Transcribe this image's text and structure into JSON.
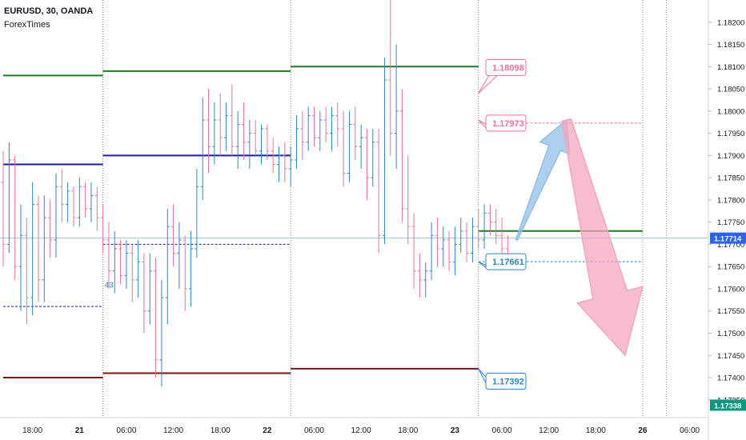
{
  "header": {
    "symbol": "EURUSD, 30, OANDA",
    "publisher": "ForexTimes"
  },
  "colors": {
    "bull": "#2e86c1",
    "bear": "#ef6f9a",
    "resistance": "#1b7a1b",
    "pivot": "#1a1aa6",
    "support": "#7a1515",
    "arrow_up": "#8fbfe6",
    "arrow_down": "#f4a6bd"
  },
  "chart_data": {
    "type": "candlestick",
    "title": "",
    "y_axis_side": "right",
    "ylim": [
      1.1731,
      1.1825
    ],
    "y_ticks": [
      "1.18200",
      "1.18150",
      "1.18100",
      "1.18050",
      "1.18000",
      "1.17950",
      "1.17900",
      "1.17850",
      "1.17800",
      "1.17750",
      "1.17700",
      "1.17650",
      "1.17600",
      "1.17550",
      "1.17500",
      "1.17450",
      "1.17400",
      "1.17350"
    ],
    "x_ticks": [
      {
        "label": "18:00",
        "bar": 5
      },
      {
        "label": "21",
        "bar": 13
      },
      {
        "label": "06:00",
        "bar": 21
      },
      {
        "label": "12:00",
        "bar": 29
      },
      {
        "label": "18:00",
        "bar": 37
      },
      {
        "label": "22",
        "bar": 45
      },
      {
        "label": "06:00",
        "bar": 53
      },
      {
        "label": "12:00",
        "bar": 61
      },
      {
        "label": "18:00",
        "bar": 69
      },
      {
        "label": "23",
        "bar": 77
      },
      {
        "label": "06:00",
        "bar": 85
      },
      {
        "label": "12:00",
        "bar": 93
      },
      {
        "label": "18:00",
        "bar": 101
      },
      {
        "label": "26",
        "bar": 109
      },
      {
        "label": "06:00",
        "bar": 117
      }
    ],
    "session_separators": [
      17,
      49,
      81,
      109,
      113
    ],
    "current_price": {
      "label": "1.17714",
      "value": 1.17714
    },
    "secondary_price": {
      "label": "1.17338",
      "value": 1.17338
    },
    "ohlc": [
      [
        1.1784,
        1.1791,
        1.1765,
        1.177
      ],
      [
        1.177,
        1.1793,
        1.1768,
        1.1789
      ],
      [
        1.1789,
        1.179,
        1.1762,
        1.1765
      ],
      [
        1.1765,
        1.1779,
        1.1755,
        1.1772
      ],
      [
        1.1772,
        1.1776,
        1.1752,
        1.1758
      ],
      [
        1.1758,
        1.1784,
        1.1754,
        1.1779
      ],
      [
        1.1779,
        1.1781,
        1.1757,
        1.1762
      ],
      [
        1.1762,
        1.1781,
        1.1757,
        1.1776
      ],
      [
        1.1776,
        1.178,
        1.1767,
        1.1771
      ],
      [
        1.1771,
        1.1786,
        1.1767,
        1.1783
      ],
      [
        1.1783,
        1.1787,
        1.1775,
        1.1779
      ],
      [
        1.1779,
        1.1784,
        1.1775,
        1.1782
      ],
      [
        1.1782,
        1.1783,
        1.1774,
        1.1776
      ],
      [
        1.1776,
        1.1785,
        1.1774,
        1.1783
      ],
      [
        1.1783,
        1.1784,
        1.1776,
        1.1778
      ],
      [
        1.1778,
        1.1784,
        1.1775,
        1.1781
      ],
      [
        1.1781,
        1.1783,
        1.1773,
        1.1776
      ],
      [
        1.1776,
        1.1779,
        1.1768,
        1.1771
      ],
      [
        1.1771,
        1.1775,
        1.176,
        1.1764
      ],
      [
        1.1764,
        1.1773,
        1.1759,
        1.1769
      ],
      [
        1.1769,
        1.1771,
        1.1761,
        1.1763
      ],
      [
        1.1763,
        1.1771,
        1.176,
        1.1768
      ],
      [
        1.1768,
        1.177,
        1.1757,
        1.1762
      ],
      [
        1.1762,
        1.1771,
        1.1758,
        1.1766
      ],
      [
        1.1766,
        1.1768,
        1.175,
        1.1755
      ],
      [
        1.1755,
        1.1768,
        1.1752,
        1.1764
      ],
      [
        1.1764,
        1.1767,
        1.174,
        1.1744
      ],
      [
        1.1744,
        1.1762,
        1.1738,
        1.1758
      ],
      [
        1.1758,
        1.1778,
        1.1752,
        1.1774
      ],
      [
        1.1774,
        1.1779,
        1.1765,
        1.1768
      ],
      [
        1.1768,
        1.1775,
        1.176,
        1.1771
      ],
      [
        1.1771,
        1.1772,
        1.1755,
        1.176
      ],
      [
        1.176,
        1.1773,
        1.1756,
        1.1769
      ],
      [
        1.1769,
        1.1787,
        1.1767,
        1.1783
      ],
      [
        1.1783,
        1.1803,
        1.178,
        1.1798
      ],
      [
        1.1798,
        1.1805,
        1.1786,
        1.1792
      ],
      [
        1.1792,
        1.1802,
        1.1788,
        1.1798
      ],
      [
        1.1798,
        1.1804,
        1.179,
        1.1794
      ],
      [
        1.1794,
        1.1802,
        1.1791,
        1.1799
      ],
      [
        1.1799,
        1.1806,
        1.179,
        1.1792
      ],
      [
        1.1792,
        1.18,
        1.1787,
        1.1797
      ],
      [
        1.1797,
        1.1802,
        1.1789,
        1.1793
      ],
      [
        1.1793,
        1.1798,
        1.1787,
        1.1795
      ],
      [
        1.1795,
        1.1798,
        1.179,
        1.1791
      ],
      [
        1.1791,
        1.1797,
        1.1788,
        1.1796
      ],
      [
        1.1796,
        1.1797,
        1.1789,
        1.1791
      ],
      [
        1.1791,
        1.1794,
        1.1786,
        1.1788
      ],
      [
        1.1788,
        1.1792,
        1.1784,
        1.179
      ],
      [
        1.179,
        1.1793,
        1.1784,
        1.1787
      ],
      [
        1.1787,
        1.1792,
        1.1783,
        1.1789
      ],
      [
        1.1789,
        1.1799,
        1.1787,
        1.1796
      ],
      [
        1.1796,
        1.18,
        1.1789,
        1.1793
      ],
      [
        1.1793,
        1.1801,
        1.1791,
        1.1799
      ],
      [
        1.1799,
        1.1801,
        1.1792,
        1.1794
      ],
      [
        1.1794,
        1.18,
        1.1791,
        1.1798
      ],
      [
        1.1798,
        1.1801,
        1.1793,
        1.1795
      ],
      [
        1.1795,
        1.1801,
        1.1791,
        1.1799
      ],
      [
        1.1799,
        1.1802,
        1.1792,
        1.1796
      ],
      [
        1.1796,
        1.18,
        1.1783,
        1.1786
      ],
      [
        1.1786,
        1.18,
        1.1784,
        1.1797
      ],
      [
        1.1797,
        1.1801,
        1.1789,
        1.1792
      ],
      [
        1.1792,
        1.1797,
        1.1787,
        1.1794
      ],
      [
        1.1794,
        1.1796,
        1.178,
        1.1785
      ],
      [
        1.1785,
        1.1796,
        1.1783,
        1.1793
      ],
      [
        1.1793,
        1.1796,
        1.1768,
        1.1772
      ],
      [
        1.1772,
        1.1812,
        1.177,
        1.1807
      ],
      [
        1.1807,
        1.1825,
        1.179,
        1.1795
      ],
      [
        1.1795,
        1.1815,
        1.1787,
        1.18
      ],
      [
        1.18,
        1.1805,
        1.1775,
        1.1778
      ],
      [
        1.1778,
        1.179,
        1.177,
        1.1774
      ],
      [
        1.1774,
        1.1777,
        1.176,
        1.1764
      ],
      [
        1.1764,
        1.1768,
        1.1758,
        1.1762
      ],
      [
        1.1762,
        1.1766,
        1.1758,
        1.1764
      ],
      [
        1.1764,
        1.1775,
        1.1762,
        1.1772
      ],
      [
        1.1772,
        1.1776,
        1.1765,
        1.1769
      ],
      [
        1.1769,
        1.1774,
        1.1765,
        1.1771
      ],
      [
        1.1771,
        1.1773,
        1.1764,
        1.1766
      ],
      [
        1.1766,
        1.1774,
        1.1763,
        1.177
      ],
      [
        1.177,
        1.1776,
        1.1768,
        1.1773
      ],
      [
        1.1773,
        1.1775,
        1.1766,
        1.1768
      ],
      [
        1.1768,
        1.1776,
        1.1766,
        1.1774
      ],
      [
        1.1774,
        1.1778,
        1.1769,
        1.1771
      ],
      [
        1.1771,
        1.1779,
        1.1769,
        1.1777
      ],
      [
        1.1777,
        1.1779,
        1.1772,
        1.1775
      ],
      [
        1.1775,
        1.1778,
        1.177,
        1.1772
      ],
      [
        1.1772,
        1.1776,
        1.1766,
        1.1769
      ],
      [
        1.1769,
        1.1772,
        1.1765,
        1.1767
      ]
    ],
    "levels": [
      {
        "start": 0,
        "end": 17,
        "value": 1.1808,
        "kind": "resistance"
      },
      {
        "start": 17,
        "end": 49,
        "value": 1.1809,
        "kind": "resistance"
      },
      {
        "start": 49,
        "end": 81,
        "value": 1.181,
        "kind": "resistance"
      },
      {
        "start": 81,
        "end": 109,
        "value": 1.1773,
        "kind": "resistance"
      },
      {
        "start": 0,
        "end": 17,
        "value": 1.1788,
        "kind": "pivot"
      },
      {
        "start": 17,
        "end": 49,
        "value": 1.179,
        "kind": "pivot"
      },
      {
        "start": 0,
        "end": 17,
        "value": 1.174,
        "kind": "support"
      },
      {
        "start": 17,
        "end": 49,
        "value": 1.1741,
        "kind": "support"
      },
      {
        "start": 49,
        "end": 81,
        "value": 1.1742,
        "kind": "support"
      }
    ],
    "dashed_levels": [
      {
        "start": 0,
        "end": 17,
        "value": 1.1756,
        "kind": "pivot"
      },
      {
        "start": 17,
        "end": 49,
        "value": 1.177,
        "kind": "pivot"
      },
      {
        "start": 81,
        "end": 109,
        "value": 1.17661,
        "kind": "bull"
      },
      {
        "start": 81,
        "end": 109,
        "value": 1.17973,
        "kind": "bear"
      }
    ],
    "callouts": [
      {
        "label": "1.18098",
        "value": 1.18098,
        "kind": "bear",
        "anchor_bar": 81,
        "anchor_value": 1.1804
      },
      {
        "label": "1.17973",
        "value": 1.17973,
        "kind": "bear",
        "anchor_bar": 81,
        "anchor_value": 1.1798
      },
      {
        "label": "1.17661",
        "value": 1.17661,
        "kind": "bull",
        "anchor_bar": 81,
        "anchor_value": 1.1766
      },
      {
        "label": "1.17392",
        "value": 1.17392,
        "kind": "bull",
        "anchor_bar": 81,
        "anchor_value": 1.1742
      }
    ],
    "small_label": {
      "label": "43",
      "bar": 17,
      "value": 1.1761
    },
    "arrows": [
      {
        "kind": "up",
        "from_bar": 87.5,
        "from_value": 1.1771,
        "to_bar": 96,
        "to_value": 1.1798
      },
      {
        "kind": "down",
        "from_bar": 96,
        "from_value": 1.1798,
        "to_bar": 106,
        "to_value": 1.1745
      }
    ]
  }
}
